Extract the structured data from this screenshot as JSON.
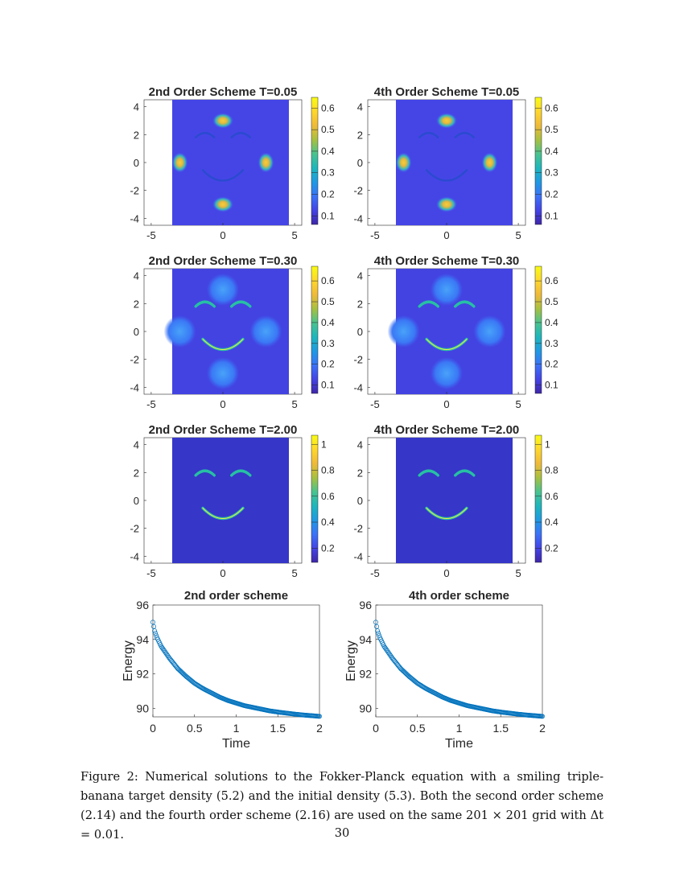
{
  "figure": {
    "heatmaps": [
      {
        "title": "2nd Order Scheme T=0.05",
        "stage": 0,
        "colorbar_ticks": [
          "0.1",
          "0.2",
          "0.3",
          "0.4",
          "0.5",
          "0.6"
        ],
        "clim": [
          0.06,
          0.65
        ]
      },
      {
        "title": "4th Order Scheme T=0.05",
        "stage": 0,
        "colorbar_ticks": [
          "0.1",
          "0.2",
          "0.3",
          "0.4",
          "0.5",
          "0.6"
        ],
        "clim": [
          0.06,
          0.65
        ]
      },
      {
        "title": "2nd Order Scheme T=0.30",
        "stage": 1,
        "colorbar_ticks": [
          "0.1",
          "0.2",
          "0.3",
          "0.4",
          "0.5",
          "0.6"
        ],
        "clim": [
          0.06,
          0.67
        ]
      },
      {
        "title": "4th Order Scheme T=0.30",
        "stage": 1,
        "colorbar_ticks": [
          "0.1",
          "0.2",
          "0.3",
          "0.4",
          "0.5",
          "0.6"
        ],
        "clim": [
          0.06,
          0.67
        ]
      },
      {
        "title": "2nd Order Scheme T=2.00",
        "stage": 2,
        "colorbar_ticks": [
          "0.2",
          "0.4",
          "0.6",
          "0.8",
          "1"
        ],
        "clim": [
          0.09,
          1.07
        ]
      },
      {
        "title": "4th Order Scheme T=2.00",
        "stage": 2,
        "colorbar_ticks": [
          "0.2",
          "0.4",
          "0.6",
          "0.8",
          "1"
        ],
        "clim": [
          0.09,
          1.07
        ]
      }
    ],
    "heatmap_x_ticks": [
      "-5",
      "0",
      "5"
    ],
    "heatmap_y_ticks": [
      "4",
      "2",
      "0",
      "-2",
      "-4"
    ],
    "colormap": [
      "#3e26a8",
      "#4443e5",
      "#3b72f8",
      "#1f99e3",
      "#1eb6bd",
      "#4ac38e",
      "#a8c040",
      "#f0ba3a",
      "#fed72d",
      "#f9fb15"
    ],
    "energy_plots": [
      {
        "title": "2nd order scheme",
        "xlabel": "Time",
        "ylabel": "Energy"
      },
      {
        "title": "4th order scheme",
        "xlabel": "Time",
        "ylabel": "Energy"
      }
    ],
    "energy_x_ticks": [
      "0",
      "0.5",
      "1",
      "1.5",
      "2"
    ],
    "energy_y_ticks": [
      "96",
      "94",
      "92",
      "90"
    ],
    "marker_color": "#0072bd"
  },
  "chart_data": [
    {
      "type": "line",
      "title": "2nd order scheme",
      "xlabel": "Time",
      "ylabel": "Energy",
      "xlim": [
        0,
        2
      ],
      "ylim": [
        89.5,
        96
      ],
      "x": [
        0,
        0.02,
        0.05,
        0.1,
        0.2,
        0.3,
        0.4,
        0.5,
        0.6,
        0.7,
        0.8,
        0.9,
        1.0,
        1.1,
        1.2,
        1.3,
        1.4,
        1.5,
        1.6,
        1.7,
        1.8,
        1.9,
        2.0
      ],
      "y": [
        95.0,
        94.5,
        94.1,
        93.6,
        92.9,
        92.3,
        91.85,
        91.45,
        91.15,
        90.9,
        90.65,
        90.45,
        90.3,
        90.15,
        90.05,
        89.95,
        89.85,
        89.78,
        89.72,
        89.66,
        89.61,
        89.57,
        89.53
      ],
      "marker": "open circle"
    },
    {
      "type": "line",
      "title": "4th order scheme",
      "xlabel": "Time",
      "ylabel": "Energy",
      "xlim": [
        0,
        2
      ],
      "ylim": [
        89.5,
        96
      ],
      "x": [
        0,
        0.02,
        0.05,
        0.1,
        0.2,
        0.3,
        0.4,
        0.5,
        0.6,
        0.7,
        0.8,
        0.9,
        1.0,
        1.1,
        1.2,
        1.3,
        1.4,
        1.5,
        1.6,
        1.7,
        1.8,
        1.9,
        2.0
      ],
      "y": [
        95.0,
        94.5,
        94.1,
        93.6,
        92.9,
        92.3,
        91.85,
        91.45,
        91.15,
        90.9,
        90.65,
        90.45,
        90.3,
        90.15,
        90.05,
        89.95,
        89.85,
        89.78,
        89.72,
        89.66,
        89.61,
        89.57,
        89.53
      ],
      "marker": "open circle"
    }
  ],
  "caption": {
    "text": "Figure 2: Numerical solutions to the Fokker-Planck equation with a smiling triple-banana target density (5.2) and the initial density (5.3). Both the second order scheme (2.14) and the fourth order scheme (2.16) are used on the same 201 × 201 grid with Δt = 0.01."
  },
  "page_number": "30"
}
